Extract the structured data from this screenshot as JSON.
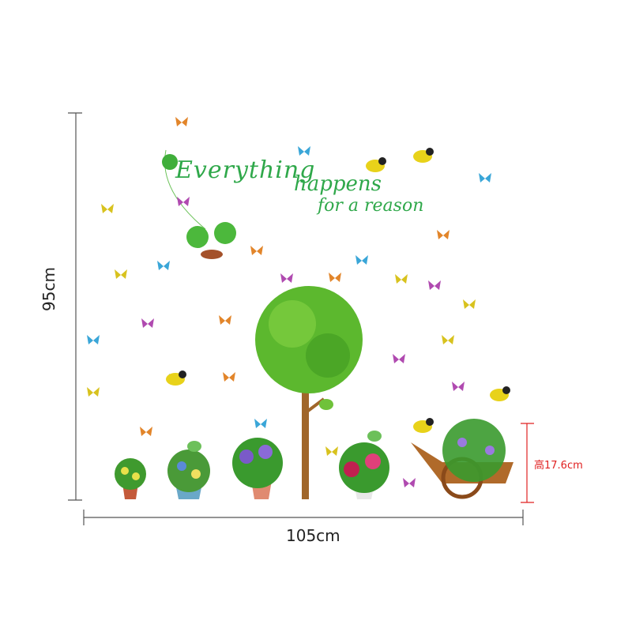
{
  "dimensions": {
    "width_label": "105cm",
    "height_label": "95cm",
    "cart_height_label": "高17.6cm",
    "line_color": "#555555",
    "cart_line_color": "#e02020"
  },
  "quote": {
    "line1": "Everything",
    "line2": "happens",
    "line3": "for a reason",
    "color": "#2fa84a"
  },
  "decor": {
    "tree_leaf_color": "#5cb82e",
    "trunk_color": "#a0662a",
    "butterfly_colors": [
      "#e2852a",
      "#3aa6d8",
      "#d8c21e",
      "#b04ab0"
    ],
    "bird_color": "#e8d21a"
  }
}
